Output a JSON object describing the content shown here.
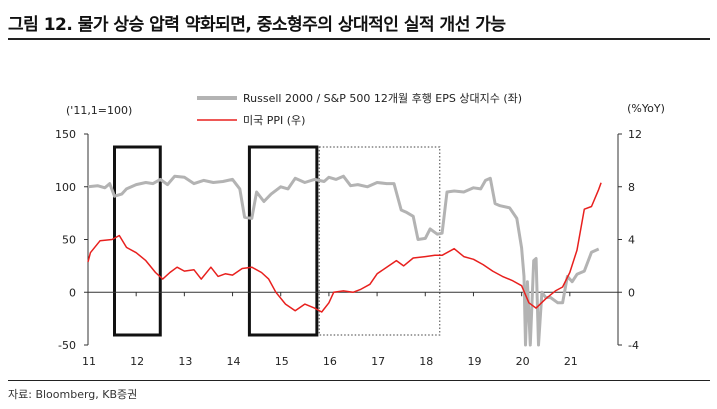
{
  "title": "그림 12. 물가 상승 압력 약화되면, 중소형주의 상대적인 실적 개선 가능",
  "source": "자료: Bloomberg, KB증권",
  "colors": {
    "russell": "#b3b3b3",
    "ppi": "#e8201e",
    "box": "#111111"
  },
  "chart_data": {
    "type": "line",
    "title": "그림 12. 물가 상승 압력 약화되면, 중소형주의 상대적인 실적 개선 가능",
    "left_axis": {
      "unit": "('11,1=100)",
      "range": [
        -50,
        150
      ],
      "ticks": [
        "150",
        "100",
        "50",
        "0",
        "-50"
      ]
    },
    "right_axis": {
      "unit": "(%YoY)",
      "range": [
        -4,
        12
      ],
      "ticks": [
        "12",
        "8",
        "4",
        "0",
        "-4"
      ]
    },
    "x_axis": {
      "range": [
        2011,
        2022
      ],
      "ticks": [
        "11",
        "12",
        "13",
        "14",
        "15",
        "16",
        "17",
        "18",
        "19",
        "20",
        "21"
      ]
    },
    "legend": {
      "placement": "top-center"
    },
    "series": [
      {
        "name": "Russell 2000 / S&P 500 12개월 후행 EPS 상대지수 (좌)",
        "axis": "left",
        "points": [
          [
            2011.0,
            100
          ],
          [
            2011.2,
            101
          ],
          [
            2011.35,
            99
          ],
          [
            2011.45,
            103
          ],
          [
            2011.55,
            91
          ],
          [
            2011.7,
            93
          ],
          [
            2011.8,
            98
          ],
          [
            2012.0,
            102
          ],
          [
            2012.2,
            104
          ],
          [
            2012.35,
            103
          ],
          [
            2012.5,
            107
          ],
          [
            2012.65,
            102
          ],
          [
            2012.8,
            110
          ],
          [
            2013.0,
            109
          ],
          [
            2013.2,
            103
          ],
          [
            2013.4,
            106
          ],
          [
            2013.6,
            104
          ],
          [
            2013.8,
            105
          ],
          [
            2014.0,
            107
          ],
          [
            2014.15,
            98
          ],
          [
            2014.25,
            71
          ],
          [
            2014.4,
            70
          ],
          [
            2014.5,
            95
          ],
          [
            2014.65,
            86
          ],
          [
            2014.8,
            93
          ],
          [
            2015.0,
            100
          ],
          [
            2015.15,
            98
          ],
          [
            2015.3,
            108
          ],
          [
            2015.5,
            104
          ],
          [
            2015.7,
            107
          ],
          [
            2015.9,
            105
          ],
          [
            2016.0,
            109
          ],
          [
            2016.15,
            107
          ],
          [
            2016.3,
            110
          ],
          [
            2016.45,
            101
          ],
          [
            2016.6,
            102
          ],
          [
            2016.8,
            100
          ],
          [
            2017.0,
            104
          ],
          [
            2017.2,
            103
          ],
          [
            2017.35,
            103
          ],
          [
            2017.5,
            78
          ],
          [
            2017.6,
            76
          ],
          [
            2017.75,
            72
          ],
          [
            2017.85,
            50
          ],
          [
            2018.0,
            51
          ],
          [
            2018.1,
            60
          ],
          [
            2018.25,
            55
          ],
          [
            2018.35,
            56
          ],
          [
            2018.45,
            95
          ],
          [
            2018.6,
            96
          ],
          [
            2018.8,
            95
          ],
          [
            2019.0,
            99
          ],
          [
            2019.15,
            98
          ],
          [
            2019.25,
            106
          ],
          [
            2019.35,
            108
          ],
          [
            2019.45,
            84
          ],
          [
            2019.55,
            82
          ],
          [
            2019.75,
            80
          ],
          [
            2019.9,
            70
          ],
          [
            2020.0,
            42
          ],
          [
            2020.05,
            15
          ],
          [
            2020.08,
            -50
          ],
          [
            2020.12,
            10
          ],
          [
            2020.18,
            -50
          ],
          [
            2020.25,
            30
          ],
          [
            2020.3,
            32
          ],
          [
            2020.35,
            -50
          ],
          [
            2020.42,
            0
          ],
          [
            2020.5,
            -5
          ],
          [
            2020.6,
            -5
          ],
          [
            2020.75,
            -10
          ],
          [
            2020.85,
            -10
          ],
          [
            2020.95,
            15
          ],
          [
            2021.05,
            10
          ],
          [
            2021.15,
            17
          ],
          [
            2021.3,
            20
          ],
          [
            2021.45,
            38
          ],
          [
            2021.6,
            41
          ]
        ]
      },
      {
        "name": "미국 PPI (우)",
        "axis": "right",
        "points": [
          [
            2011.0,
            2.3
          ],
          [
            2011.05,
            3.0
          ],
          [
            2011.25,
            3.9
          ],
          [
            2011.5,
            4.0
          ],
          [
            2011.65,
            4.3
          ],
          [
            2011.8,
            3.4
          ],
          [
            2012.0,
            3.0
          ],
          [
            2012.2,
            2.4
          ],
          [
            2012.4,
            1.5
          ],
          [
            2012.55,
            1.0
          ],
          [
            2012.7,
            1.5
          ],
          [
            2012.85,
            1.9
          ],
          [
            2013.0,
            1.6
          ],
          [
            2013.2,
            1.7
          ],
          [
            2013.35,
            1.0
          ],
          [
            2013.55,
            1.9
          ],
          [
            2013.7,
            1.2
          ],
          [
            2013.85,
            1.4
          ],
          [
            2014.0,
            1.3
          ],
          [
            2014.2,
            1.8
          ],
          [
            2014.4,
            1.9
          ],
          [
            2014.6,
            1.5
          ],
          [
            2014.75,
            1.0
          ],
          [
            2014.9,
            0.0
          ],
          [
            2015.1,
            -0.9
          ],
          [
            2015.3,
            -1.4
          ],
          [
            2015.5,
            -0.9
          ],
          [
            2015.7,
            -1.2
          ],
          [
            2015.85,
            -1.5
          ],
          [
            2016.0,
            -0.8
          ],
          [
            2016.1,
            0.0
          ],
          [
            2016.3,
            0.1
          ],
          [
            2016.5,
            0.0
          ],
          [
            2016.65,
            0.2
          ],
          [
            2016.85,
            0.6
          ],
          [
            2017.0,
            1.4
          ],
          [
            2017.2,
            1.9
          ],
          [
            2017.4,
            2.4
          ],
          [
            2017.55,
            2.0
          ],
          [
            2017.75,
            2.6
          ],
          [
            2018.0,
            2.7
          ],
          [
            2018.2,
            2.8
          ],
          [
            2018.35,
            2.8
          ],
          [
            2018.6,
            3.3
          ],
          [
            2018.8,
            2.7
          ],
          [
            2019.0,
            2.5
          ],
          [
            2019.2,
            2.1
          ],
          [
            2019.4,
            1.6
          ],
          [
            2019.6,
            1.2
          ],
          [
            2019.8,
            0.9
          ],
          [
            2020.0,
            0.5
          ],
          [
            2020.15,
            -0.8
          ],
          [
            2020.3,
            -1.2
          ],
          [
            2020.5,
            -0.5
          ],
          [
            2020.7,
            0.1
          ],
          [
            2020.85,
            0.4
          ],
          [
            2021.0,
            1.5
          ],
          [
            2021.15,
            3.2
          ],
          [
            2021.3,
            6.3
          ],
          [
            2021.45,
            6.5
          ],
          [
            2021.6,
            7.8
          ],
          [
            2021.65,
            8.3
          ]
        ]
      }
    ],
    "highlight_boxes": [
      {
        "x": [
          2011.55,
          2012.5
        ],
        "style": "solid"
      },
      {
        "x": [
          2014.35,
          2015.75
        ],
        "style": "solid"
      },
      {
        "x": [
          2015.8,
          2018.3
        ],
        "style": "dotted"
      }
    ]
  }
}
